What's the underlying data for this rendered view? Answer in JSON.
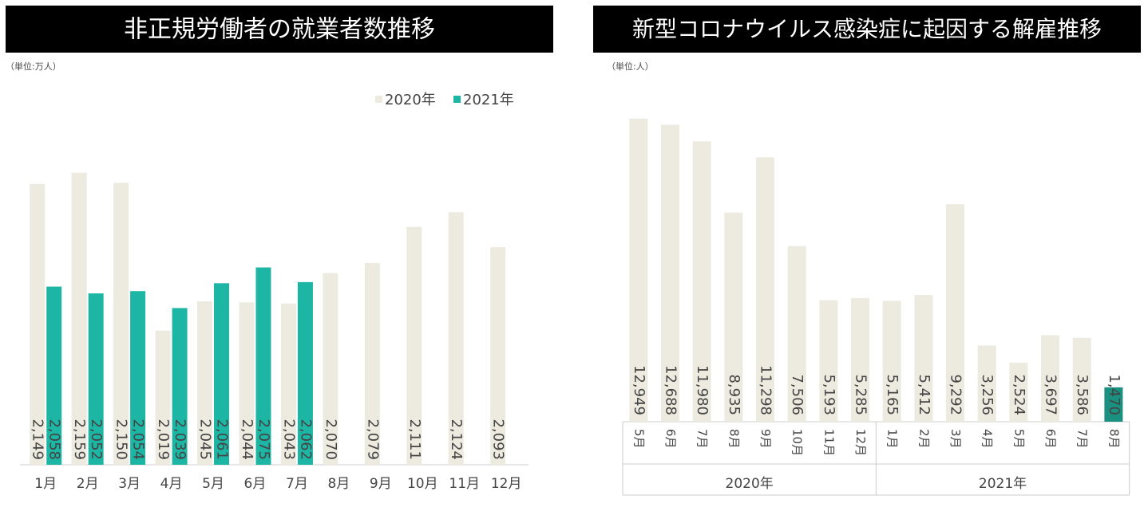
{
  "chart_data": [
    {
      "type": "bar",
      "title": "非正規労働者の就業者数推移",
      "unit_note": "（単位:万人）",
      "categories": [
        "1月",
        "2月",
        "3月",
        "4月",
        "5月",
        "6月",
        "7月",
        "8月",
        "9月",
        "10月",
        "11月",
        "12月"
      ],
      "series": [
        {
          "name": "2020年",
          "color": "#edeae0",
          "values": [
            2149,
            2159,
            2150,
            2019,
            2045,
            2044,
            2043,
            2070,
            2079,
            2111,
            2124,
            2093
          ],
          "value_labels": [
            "2,149",
            "2,159",
            "2,150",
            "2,019",
            "2,045",
            "2,044",
            "2,043",
            "2,070",
            "2,079",
            "2,111",
            "2,124",
            "2,093"
          ]
        },
        {
          "name": "2021年",
          "color": "#1db5a3",
          "values": [
            2058,
            2052,
            2054,
            2039,
            2061,
            2075,
            2062,
            null,
            null,
            null,
            null,
            null
          ],
          "value_labels": [
            "2,058",
            "2,052",
            "2,054",
            "2,039",
            "2,061",
            "2,075",
            "2,062",
            null,
            null,
            null,
            null,
            null
          ]
        }
      ],
      "ylim": [
        1900,
        2250
      ],
      "legend": "top-right"
    },
    {
      "type": "grouped-bar",
      "title": "新型コロナウイルス感染症に起因する解雇推移",
      "unit_note": "（単位:人）",
      "groups": [
        {
          "name": "2020年",
          "categories": [
            "5月",
            "6月",
            "7月",
            "8月",
            "9月",
            "10月",
            "11月",
            "12月"
          ],
          "values": [
            12949,
            12688,
            11980,
            8935,
            11298,
            7506,
            5193,
            5285
          ],
          "value_labels": [
            "12,949",
            "12,688",
            "11,980",
            "8,935",
            "11,298",
            "7,506",
            "5,193",
            "5,285"
          ],
          "colors": [
            "#edeae0",
            "#edeae0",
            "#edeae0",
            "#edeae0",
            "#edeae0",
            "#edeae0",
            "#edeae0",
            "#edeae0"
          ]
        },
        {
          "name": "2021年",
          "categories": [
            "1月",
            "2月",
            "3月",
            "4月",
            "5月",
            "6月",
            "7月",
            "8月"
          ],
          "values": [
            5165,
            5412,
            9292,
            3256,
            2524,
            3697,
            3586,
            1470
          ],
          "value_labels": [
            "5,165",
            "5,412",
            "9,292",
            "3,256",
            "2,524",
            "3,697",
            "3,586",
            "1,470"
          ],
          "colors": [
            "#edeae0",
            "#edeae0",
            "#edeae0",
            "#edeae0",
            "#edeae0",
            "#edeae0",
            "#edeae0",
            "#1a9080"
          ]
        }
      ],
      "ylim": [
        0,
        14000
      ]
    }
  ]
}
